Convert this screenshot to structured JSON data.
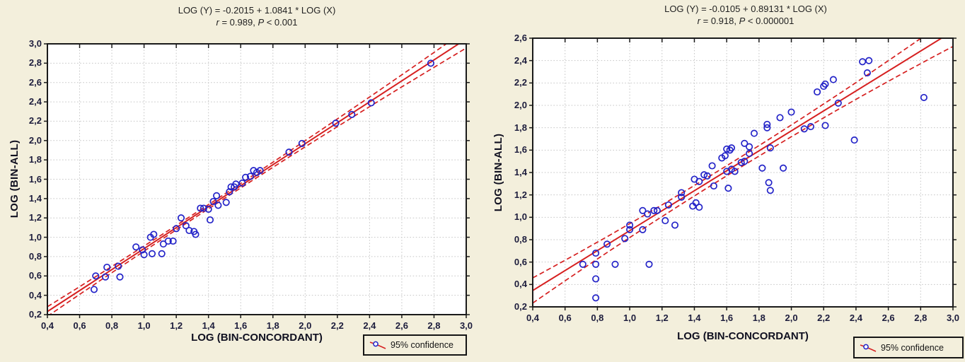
{
  "colors": {
    "background": "#F3EFDC",
    "plot_background": "#FFFFFF",
    "point": "#2323C8",
    "regression_line": "#D62020",
    "confidence_band": "#D62020",
    "grid": "#C6C6C6",
    "border": "#1A1A1A",
    "tick_label": "#1C1C3C",
    "axis_label": "#101020",
    "title": "#222222"
  },
  "chart_data": [
    {
      "type": "scatter",
      "title": "LOG (Y) = -0.2015 + 1.0841 * LOG (X)",
      "subtitle": "r = 0.989, P < 0.001",
      "subtitle_parts": {
        "r": "r",
        "r_rest": " = 0.989, ",
        "p": "P",
        "p_rest": " < 0.001"
      },
      "xlabel": "LOG (BIN-CONCORDANT)",
      "ylabel": "LOG (BIN-ALL)",
      "xlim": [
        0.4,
        3.0
      ],
      "ylim": [
        0.2,
        3.0
      ],
      "tick_step": 0.2,
      "decimal_separator": ",",
      "grid": "dotted",
      "xtick_labels": [
        "0,4",
        "0,6",
        "0,8",
        "1,0",
        "1,2",
        "1,4",
        "1,6",
        "1,8",
        "2,0",
        "2,2",
        "2,4",
        "2,6",
        "2,8",
        "3,0"
      ],
      "ytick_labels": [
        "0,2",
        "0,4",
        "0,6",
        "0,8",
        "1,0",
        "1,2",
        "1,4",
        "1,6",
        "1,8",
        "2,0",
        "2,2",
        "2,4",
        "2,6",
        "2,8",
        "3,0"
      ],
      "regression": {
        "intercept": -0.2015,
        "slope": 1.0841,
        "r": 0.989,
        "p": "< 0.001"
      },
      "confidence_band": {
        "level": "95%",
        "cx": 1.4,
        "w0": 0.022,
        "k": 0.028
      },
      "legend_label": "95% confidence",
      "points": [
        [
          0.7,
          0.6
        ],
        [
          0.69,
          0.46
        ],
        [
          0.77,
          0.69
        ],
        [
          0.76,
          0.59
        ],
        [
          0.84,
          0.7
        ],
        [
          0.85,
          0.59
        ],
        [
          0.95,
          0.9
        ],
        [
          0.99,
          0.87
        ],
        [
          1.0,
          0.82
        ],
        [
          1.04,
          1.0
        ],
        [
          1.06,
          1.03
        ],
        [
          1.05,
          0.83
        ],
        [
          1.11,
          0.83
        ],
        [
          1.12,
          0.93
        ],
        [
          1.15,
          0.96
        ],
        [
          1.18,
          0.96
        ],
        [
          1.2,
          1.09
        ],
        [
          1.23,
          1.2
        ],
        [
          1.26,
          1.12
        ],
        [
          1.28,
          1.07
        ],
        [
          1.31,
          1.06
        ],
        [
          1.32,
          1.03
        ],
        [
          1.35,
          1.3
        ],
        [
          1.37,
          1.3
        ],
        [
          1.4,
          1.29
        ],
        [
          1.41,
          1.18
        ],
        [
          1.43,
          1.37
        ],
        [
          1.45,
          1.43
        ],
        [
          1.46,
          1.33
        ],
        [
          1.51,
          1.36
        ],
        [
          1.53,
          1.47
        ],
        [
          1.54,
          1.52
        ],
        [
          1.56,
          1.52
        ],
        [
          1.57,
          1.55
        ],
        [
          1.61,
          1.56
        ],
        [
          1.63,
          1.62
        ],
        [
          1.66,
          1.63
        ],
        [
          1.68,
          1.69
        ],
        [
          1.7,
          1.67
        ],
        [
          1.72,
          1.69
        ],
        [
          1.9,
          1.88
        ],
        [
          1.98,
          1.97
        ],
        [
          2.19,
          2.18
        ],
        [
          2.29,
          2.27
        ],
        [
          2.41,
          2.39
        ],
        [
          2.78,
          2.8
        ]
      ]
    },
    {
      "type": "scatter",
      "title": "LOG (Y) = -0.0105 + 0.89131 * LOG (X)",
      "subtitle": "r = 0.918, P < 0.000001",
      "subtitle_parts": {
        "r": "r",
        "r_rest": " = 0.918, ",
        "p": "P",
        "p_rest": " < 0.000001"
      },
      "xlabel": "LOG (BIN-CONCORDANT)",
      "ylabel": "LOG (BIN-ALL)",
      "xlim": [
        0.4,
        3.0
      ],
      "ylim": [
        0.2,
        2.6
      ],
      "tick_step": 0.2,
      "decimal_separator": ",",
      "grid": "dotted",
      "xtick_labels": [
        "0,4",
        "0,6",
        "0,8",
        "1,0",
        "1,2",
        "1,4",
        "1,6",
        "1,8",
        "2,0",
        "2,2",
        "2,4",
        "2,6",
        "2,8",
        "3,0"
      ],
      "ytick_labels": [
        "0,2",
        "0,4",
        "0,6",
        "0,8",
        "1,0",
        "1,2",
        "1,4",
        "1,6",
        "1,8",
        "2,0",
        "2,2",
        "2,4",
        "2,6"
      ],
      "regression": {
        "intercept": -0.0105,
        "slope": 0.89131,
        "r": 0.918,
        "p": "< 0.000001"
      },
      "confidence_band": {
        "level": "95%",
        "cx": 1.6,
        "w0": 0.045,
        "k": 0.047
      },
      "legend_label": "95% confidence",
      "points": [
        [
          0.71,
          0.58
        ],
        [
          0.79,
          0.28
        ],
        [
          0.79,
          0.45
        ],
        [
          0.79,
          0.58
        ],
        [
          0.79,
          0.68
        ],
        [
          0.86,
          0.76
        ],
        [
          0.91,
          0.58
        ],
        [
          0.97,
          0.81
        ],
        [
          1.0,
          0.89
        ],
        [
          1.0,
          0.93
        ],
        [
          1.08,
          0.89
        ],
        [
          1.12,
          0.58
        ],
        [
          1.08,
          1.06
        ],
        [
          1.11,
          1.03
        ],
        [
          1.15,
          1.06
        ],
        [
          1.17,
          1.06
        ],
        [
          1.22,
          0.97
        ],
        [
          1.24,
          1.11
        ],
        [
          1.28,
          0.93
        ],
        [
          1.32,
          1.22
        ],
        [
          1.32,
          1.18
        ],
        [
          1.39,
          1.1
        ],
        [
          1.41,
          1.13
        ],
        [
          1.43,
          1.09
        ],
        [
          1.4,
          1.34
        ],
        [
          1.43,
          1.32
        ],
        [
          1.46,
          1.38
        ],
        [
          1.48,
          1.37
        ],
        [
          1.51,
          1.46
        ],
        [
          1.52,
          1.28
        ],
        [
          1.57,
          1.53
        ],
        [
          1.59,
          1.55
        ],
        [
          1.6,
          1.61
        ],
        [
          1.62,
          1.6
        ],
        [
          1.63,
          1.62
        ],
        [
          1.6,
          1.41
        ],
        [
          1.63,
          1.43
        ],
        [
          1.65,
          1.41
        ],
        [
          1.61,
          1.26
        ],
        [
          1.69,
          1.49
        ],
        [
          1.71,
          1.5
        ],
        [
          1.71,
          1.66
        ],
        [
          1.74,
          1.63
        ],
        [
          1.74,
          1.57
        ],
        [
          1.77,
          1.75
        ],
        [
          1.82,
          1.44
        ],
        [
          1.85,
          1.8
        ],
        [
          1.85,
          1.83
        ],
        [
          1.86,
          1.31
        ],
        [
          1.87,
          1.24
        ],
        [
          1.87,
          1.62
        ],
        [
          1.93,
          1.89
        ],
        [
          1.95,
          1.44
        ],
        [
          2.0,
          1.94
        ],
        [
          2.08,
          1.79
        ],
        [
          2.12,
          1.81
        ],
        [
          2.16,
          2.12
        ],
        [
          2.2,
          2.17
        ],
        [
          2.21,
          2.19
        ],
        [
          2.26,
          2.23
        ],
        [
          2.29,
          2.02
        ],
        [
          2.21,
          1.82
        ],
        [
          2.39,
          1.69
        ],
        [
          2.44,
          2.39
        ],
        [
          2.47,
          2.29
        ],
        [
          2.48,
          2.4
        ],
        [
          2.82,
          2.07
        ]
      ]
    }
  ]
}
